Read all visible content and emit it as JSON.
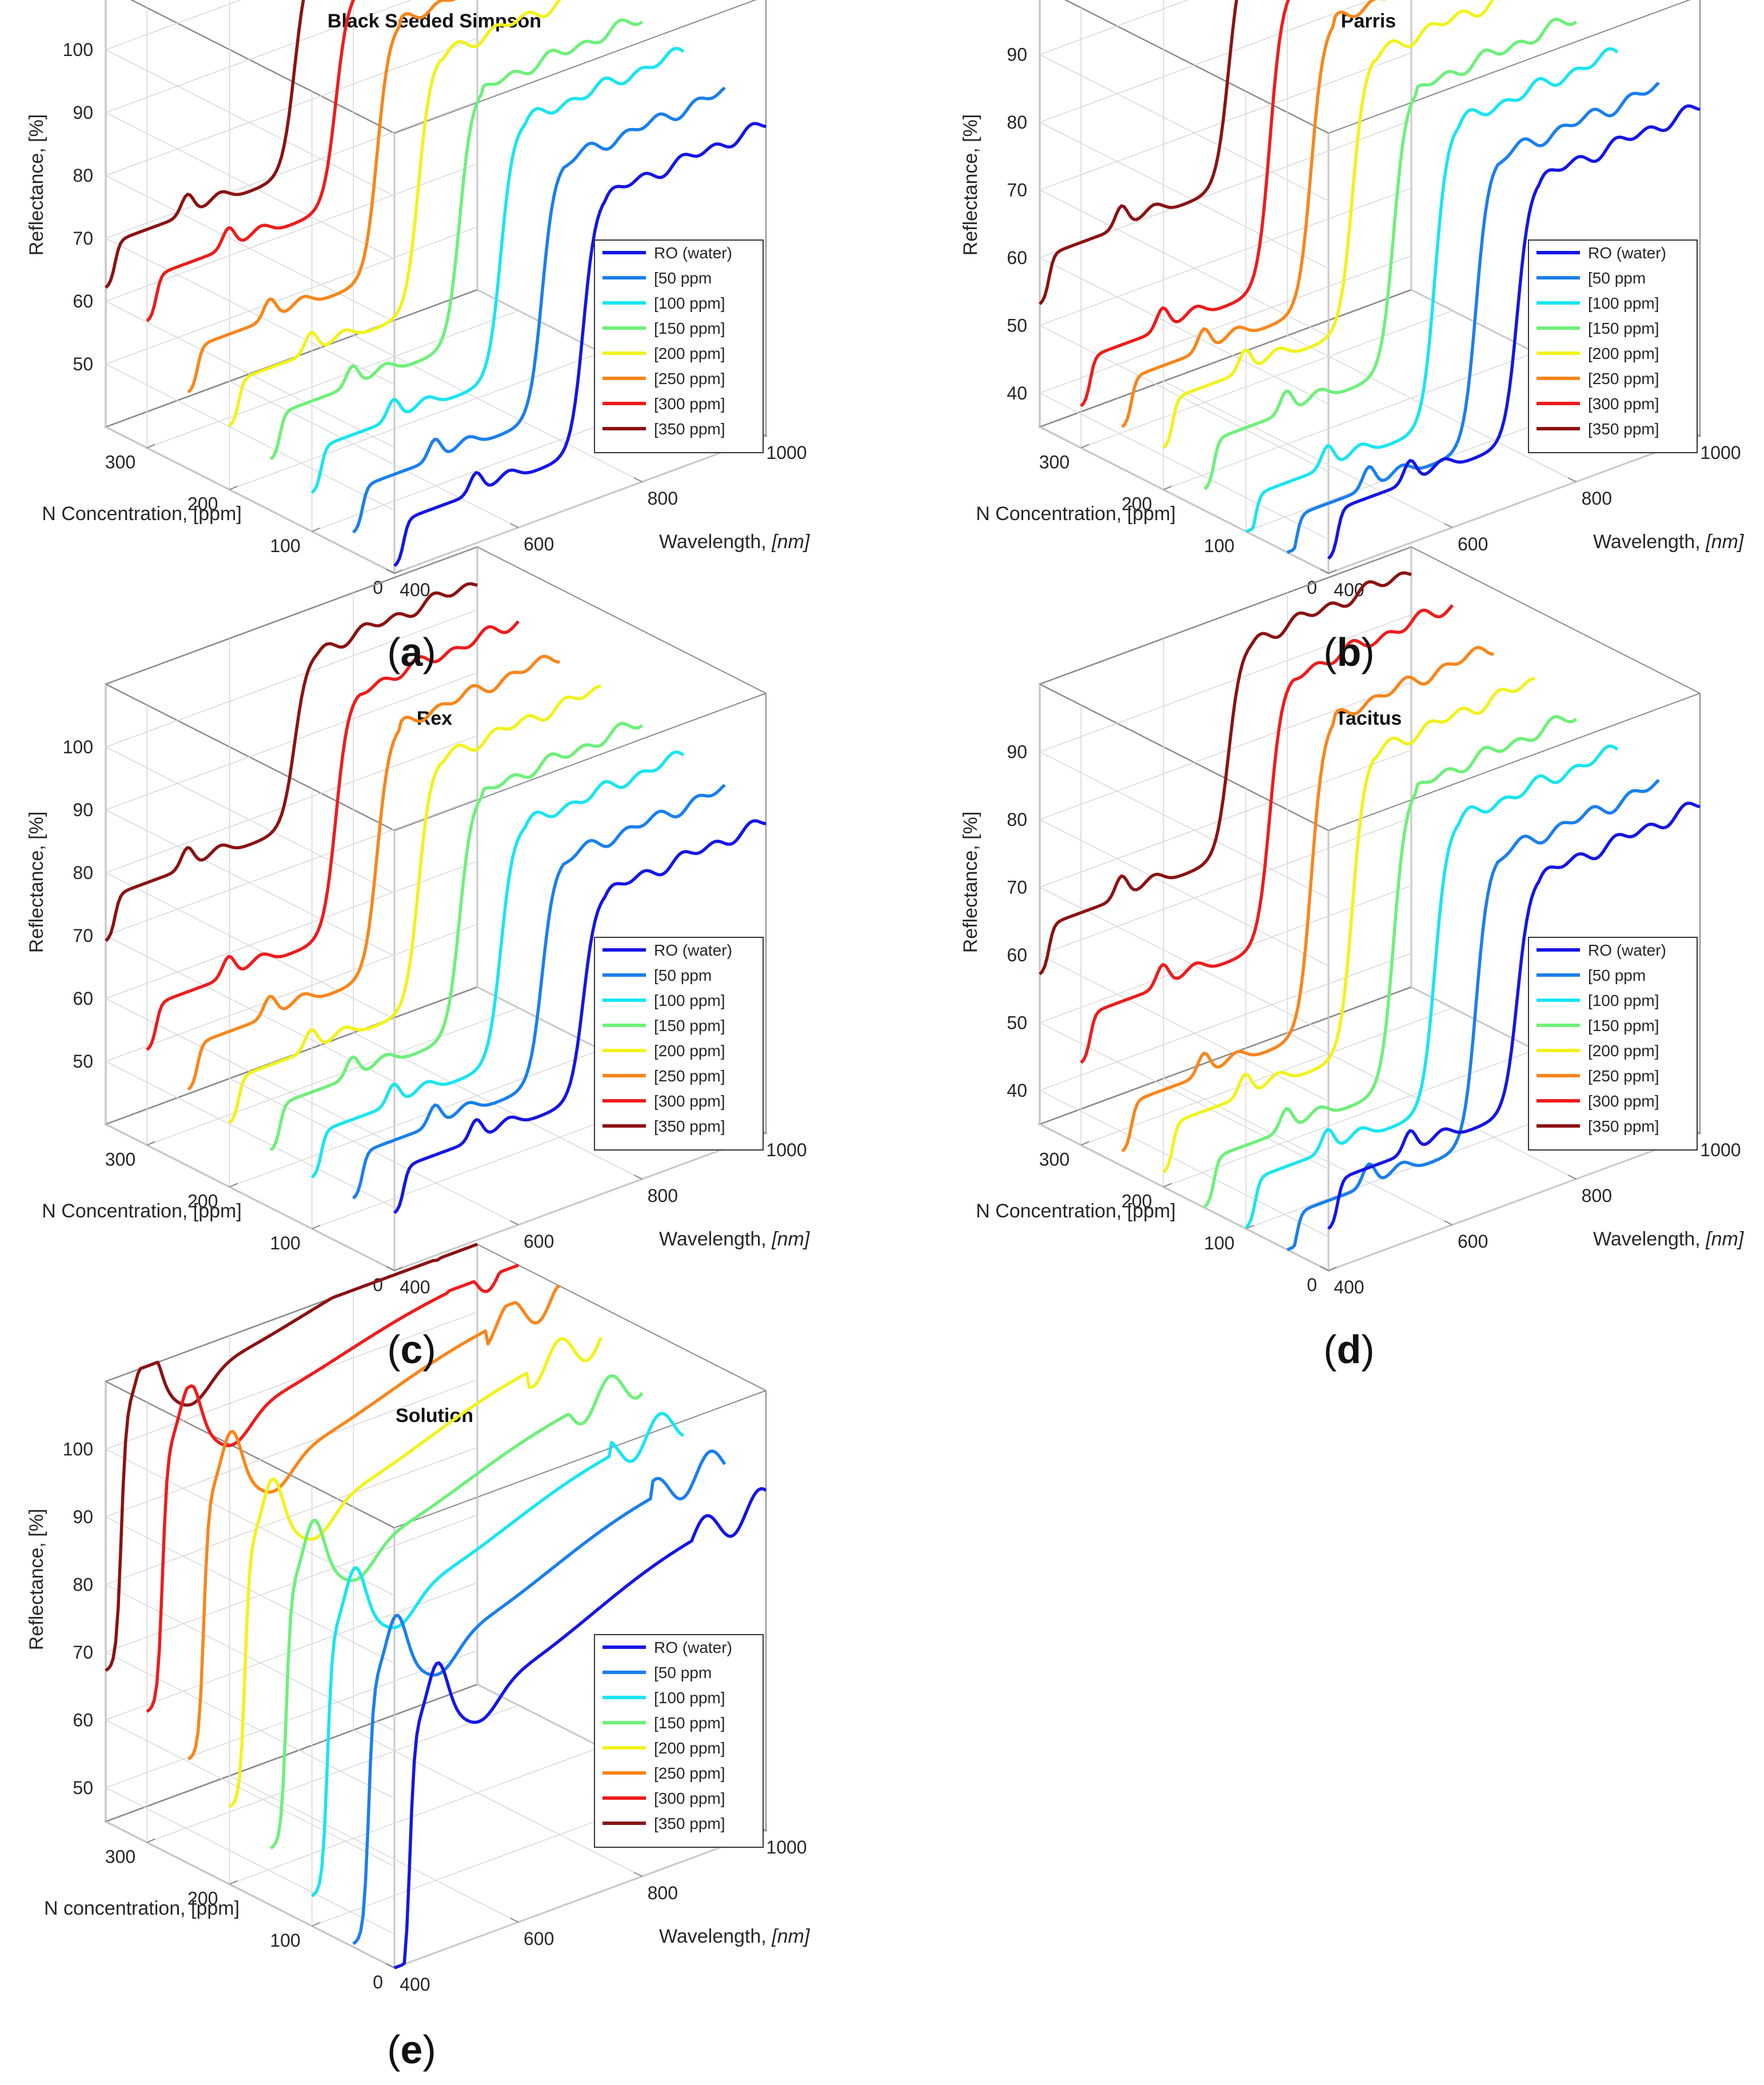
{
  "figure": {
    "panel_labels": [
      "a",
      "b",
      "c",
      "d",
      "e"
    ]
  },
  "legend_entries": [
    "RO (water)",
    "[50 ppm",
    "[100 ppm]",
    "[150 ppm]",
    "[200 ppm]",
    "[250 ppm]",
    "[300 ppm]",
    "[350 ppm]"
  ],
  "series_colors": [
    "#1515e6",
    "#1a7fee",
    "#19e5f0",
    "#6ef07a",
    "#f2f21c",
    "#f8861b",
    "#ee1c1c",
    "#8b1212"
  ],
  "chart_data": [
    {
      "type": "line3d",
      "title": "Black Seeded Simpson",
      "xlabel": "Wavelength,",
      "xlabel_unit": "[nm]",
      "ylabel": "N Concentration, [ppm]",
      "zlabel": "Reflectance, [%]",
      "x_ticks": [
        "400",
        "600",
        "800",
        "1000"
      ],
      "y_ticks": [
        "0",
        "100",
        "200",
        "300"
      ],
      "z_ticks": [
        "50",
        "60",
        "70",
        "80",
        "90",
        "100"
      ],
      "xlim": [
        400,
        1000
      ],
      "ylim": [
        0,
        350
      ],
      "zlim": [
        40,
        110
      ],
      "concentrations": [
        0,
        50,
        100,
        150,
        200,
        250,
        300,
        350
      ],
      "series": [
        {
          "name": "RO (water)",
          "low": 48,
          "high": 88,
          "bump": 1.0
        },
        {
          "name": "[50 ppm",
          "low": 50,
          "high": 90,
          "bump": 1.0
        },
        {
          "name": "[100 ppm]",
          "low": 53,
          "high": 93,
          "bump": 1.0
        },
        {
          "name": "[150 ppm]",
          "low": 55,
          "high": 95,
          "bump": 1.0
        },
        {
          "name": "[200 ppm]",
          "low": 57,
          "high": 97,
          "bump": 1.0
        },
        {
          "name": "[250 ppm]",
          "low": 59,
          "high": 99,
          "bump": 1.0
        },
        {
          "name": "[300 ppm]",
          "low": 67,
          "high": 101,
          "bump": 1.0
        },
        {
          "name": "[350 ppm]",
          "low": 69,
          "high": 103,
          "bump": 1.0
        }
      ]
    },
    {
      "type": "line3d",
      "title": "Parris",
      "xlabel": "Wavelength,",
      "xlabel_unit": "[nm]",
      "ylabel": "N Concentration, [ppm]",
      "zlabel": "Reflectance, [%]",
      "x_ticks": [
        "400",
        "600",
        "800",
        "1000"
      ],
      "y_ticks": [
        "0",
        "100",
        "200",
        "300"
      ],
      "z_ticks": [
        "40",
        "50",
        "60",
        "70",
        "80",
        "90"
      ],
      "xlim": [
        400,
        1000
      ],
      "ylim": [
        0,
        350
      ],
      "zlim": [
        35,
        100
      ],
      "concentrations": [
        0,
        50,
        100,
        150,
        200,
        250,
        300,
        350
      ],
      "series": [
        {
          "name": "RO (water)",
          "low": 44,
          "high": 82,
          "bump": 1.0
        },
        {
          "name": "[50 ppm",
          "low": 40,
          "high": 82,
          "bump": 1.0
        },
        {
          "name": "[100 ppm]",
          "low": 40,
          "high": 84,
          "bump": 1.0
        },
        {
          "name": "[150 ppm]",
          "low": 45,
          "high": 86,
          "bump": 1.0
        },
        {
          "name": "[200 ppm]",
          "low": 48,
          "high": 88,
          "bump": 1.0
        },
        {
          "name": "[250 ppm]",
          "low": 48,
          "high": 90,
          "bump": 1.0
        },
        {
          "name": "[300 ppm]",
          "low": 48,
          "high": 92,
          "bump": 1.0
        },
        {
          "name": "[350 ppm]",
          "low": 60,
          "high": 95,
          "bump": 1.0
        }
      ]
    },
    {
      "type": "line3d",
      "title": "Rex",
      "xlabel": "Wavelength,",
      "xlabel_unit": "[nm]",
      "ylabel": "N Concentration, [ppm]",
      "zlabel": "Reflectance, [%]",
      "x_ticks": [
        "400",
        "600",
        "800",
        "1000"
      ],
      "y_ticks": [
        "0",
        "100",
        "200",
        "300"
      ],
      "z_ticks": [
        "50",
        "60",
        "70",
        "80",
        "90",
        "100"
      ],
      "xlim": [
        400,
        1000
      ],
      "ylim": [
        0,
        350
      ],
      "zlim": [
        40,
        110
      ],
      "concentrations": [
        0,
        50,
        100,
        150,
        200,
        250,
        300,
        350
      ],
      "series": [
        {
          "name": "RO (water)",
          "low": 56,
          "high": 88,
          "bump": 1.0
        },
        {
          "name": "[50 ppm",
          "low": 55,
          "high": 90,
          "bump": 1.0
        },
        {
          "name": "[100 ppm]",
          "low": 55,
          "high": 92,
          "bump": 1.0
        },
        {
          "name": "[150 ppm]",
          "low": 56,
          "high": 94,
          "bump": 1.0
        },
        {
          "name": "[200 ppm]",
          "low": 57,
          "high": 96,
          "bump": 1.0
        },
        {
          "name": "[250 ppm]",
          "low": 59,
          "high": 98,
          "bump": 1.0
        },
        {
          "name": "[300 ppm]",
          "low": 62,
          "high": 100,
          "bump": 1.0
        },
        {
          "name": "[350 ppm]",
          "low": 76,
          "high": 103,
          "bump": 1.0
        }
      ]
    },
    {
      "type": "line3d",
      "title": "Tacitus",
      "xlabel": "Wavelength,",
      "xlabel_unit": "[nm]",
      "ylabel": "N Concentration, [ppm]",
      "zlabel": "Reflectance, [%]",
      "x_ticks": [
        "400",
        "600",
        "800",
        "1000"
      ],
      "y_ticks": [
        "0",
        "100",
        "200",
        "300"
      ],
      "z_ticks": [
        "40",
        "50",
        "60",
        "70",
        "80",
        "90"
      ],
      "xlim": [
        400,
        1000
      ],
      "ylim": [
        0,
        350
      ],
      "zlim": [
        35,
        100
      ],
      "concentrations": [
        0,
        50,
        100,
        150,
        200,
        250,
        300,
        350
      ],
      "series": [
        {
          "name": "RO (water)",
          "low": 48,
          "high": 82,
          "bump": 1.0
        },
        {
          "name": "[50 ppm",
          "low": 40,
          "high": 82,
          "bump": 1.0
        },
        {
          "name": "[100 ppm]",
          "low": 42,
          "high": 84,
          "bump": 1.0
        },
        {
          "name": "[150 ppm]",
          "low": 42,
          "high": 86,
          "bump": 1.0
        },
        {
          "name": "[200 ppm]",
          "low": 44,
          "high": 88,
          "bump": 1.0
        },
        {
          "name": "[250 ppm]",
          "low": 44,
          "high": 90,
          "bump": 1.0
        },
        {
          "name": "[300 ppm]",
          "low": 54,
          "high": 93,
          "bump": 1.0
        },
        {
          "name": "[350 ppm]",
          "low": 64,
          "high": 95,
          "bump": 1.0
        }
      ]
    },
    {
      "type": "line3d",
      "title": "Solution",
      "xlabel": "Wavelength,",
      "xlabel_unit": "[nm]",
      "ylabel": "N concentration, [ppm]",
      "zlabel": "Reflectance, [%]",
      "x_ticks": [
        "400",
        "600",
        "800",
        "1000"
      ],
      "y_ticks": [
        "0",
        "100",
        "200",
        "300"
      ],
      "z_ticks": [
        "50",
        "60",
        "70",
        "80",
        "90",
        "100"
      ],
      "xlim": [
        400,
        1000
      ],
      "ylim": [
        0,
        350
      ],
      "zlim": [
        45,
        110
      ],
      "concentrations": [
        0,
        50,
        100,
        150,
        200,
        250,
        300,
        350
      ],
      "series": [
        {
          "name": "RO (water)",
          "peak": 79,
          "trough": 71,
          "end": 86
        },
        {
          "name": "[50 ppm",
          "peak": 83,
          "trough": 75,
          "end": 89
        },
        {
          "name": "[100 ppm]",
          "peak": 87,
          "trough": 79,
          "end": 92
        },
        {
          "name": "[150 ppm]",
          "peak": 91,
          "trough": 83,
          "end": 95
        },
        {
          "name": "[200 ppm]",
          "peak": 94,
          "trough": 86,
          "end": 98
        },
        {
          "name": "[250 ppm]",
          "peak": 98,
          "trough": 90,
          "end": 101
        },
        {
          "name": "[300 ppm]",
          "peak": 102,
          "trough": 94,
          "end": 103
        },
        {
          "name": "[350 ppm]",
          "peak": 105,
          "trough": 97,
          "end": 105
        }
      ]
    }
  ]
}
